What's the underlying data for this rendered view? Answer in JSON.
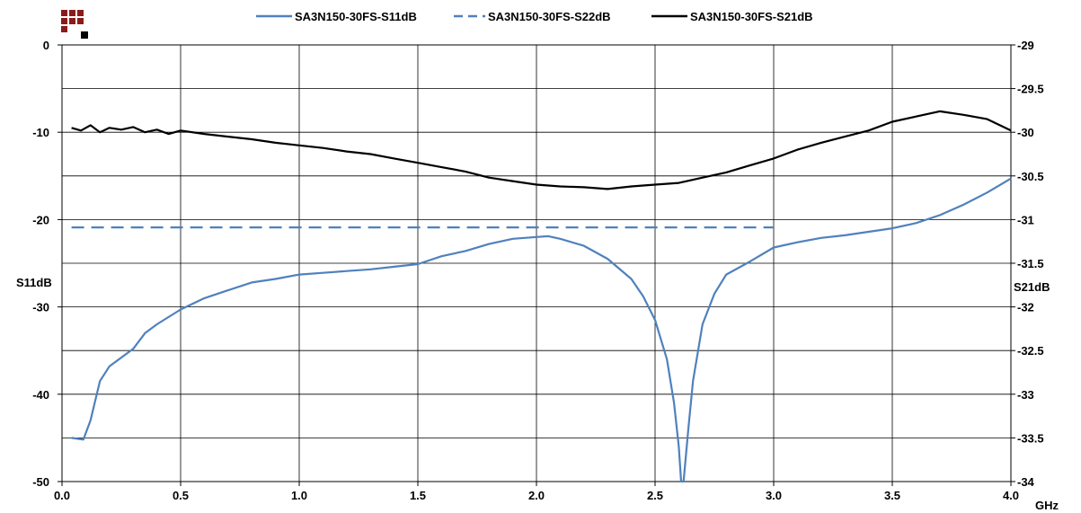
{
  "chart_data": {
    "type": "line",
    "xlabel": "GHz",
    "ylabel_left": "S11dB",
    "ylabel_right": "S21dB",
    "xlim": [
      0,
      4
    ],
    "ylim_left": [
      -50,
      0
    ],
    "ylim_right": [
      -34,
      -29
    ],
    "x_ticks": [
      "0.0",
      "0.5",
      "1.0",
      "1.5",
      "2.0",
      "2.5",
      "3.0",
      "3.5",
      "4.0"
    ],
    "y_left_ticks": [
      "0",
      "-10",
      "-20",
      "-30",
      "-40",
      "-50"
    ],
    "y_right_ticks": [
      "-29",
      "-29.5",
      "-30",
      "-30.5",
      "-31",
      "-31.5",
      "-32",
      "-32.5",
      "-33",
      "-33.5",
      "-34"
    ],
    "grid": true,
    "legend_position": "top",
    "series": [
      {
        "name": "SA3N150-30FS-S11dB",
        "axis": "left",
        "style": "solid",
        "color": "#4f81bd",
        "x": [
          0.04,
          0.09,
          0.12,
          0.16,
          0.2,
          0.25,
          0.3,
          0.35,
          0.4,
          0.5,
          0.6,
          0.7,
          0.8,
          0.9,
          1.0,
          1.1,
          1.2,
          1.3,
          1.4,
          1.5,
          1.6,
          1.7,
          1.8,
          1.9,
          2.0,
          2.05,
          2.1,
          2.2,
          2.3,
          2.4,
          2.45,
          2.5,
          2.55,
          2.58,
          2.6,
          2.61,
          2.62,
          2.64,
          2.66,
          2.7,
          2.75,
          2.8,
          2.9,
          3.0,
          3.1,
          3.2,
          3.3,
          3.4,
          3.5,
          3.6,
          3.7,
          3.8,
          3.9,
          4.0
        ],
        "y": [
          -45.0,
          -45.2,
          -43.0,
          -38.5,
          -36.8,
          -35.8,
          -34.8,
          -33.0,
          -32.0,
          -30.3,
          -29.0,
          -28.1,
          -27.2,
          -26.8,
          -26.3,
          -26.1,
          -25.9,
          -25.7,
          -25.4,
          -25.1,
          -24.2,
          -23.6,
          -22.8,
          -22.2,
          -22.0,
          -21.9,
          -22.2,
          -23.0,
          -24.5,
          -26.8,
          -28.8,
          -31.5,
          -36.0,
          -41.0,
          -46.0,
          -50.0,
          -50.0,
          -44.0,
          -38.5,
          -32.0,
          -28.5,
          -26.3,
          -24.8,
          -23.2,
          -22.6,
          -22.1,
          -21.8,
          -21.4,
          -21.0,
          -20.4,
          -19.5,
          -18.3,
          -16.9,
          -15.3
        ]
      },
      {
        "name": "SA3N150-30FS-S22dB",
        "axis": "left",
        "style": "dashed",
        "color": "#4f81bd",
        "x": [
          0.04,
          3.0
        ],
        "y": [
          -20.9,
          -20.9
        ]
      },
      {
        "name": "SA3N150-30FS-S21dB",
        "axis": "right",
        "style": "solid",
        "color": "#000000",
        "x": [
          0.04,
          0.08,
          0.12,
          0.16,
          0.2,
          0.25,
          0.3,
          0.35,
          0.4,
          0.45,
          0.5,
          0.6,
          0.7,
          0.8,
          0.9,
          1.0,
          1.1,
          1.2,
          1.3,
          1.4,
          1.5,
          1.6,
          1.7,
          1.8,
          1.9,
          2.0,
          2.1,
          2.2,
          2.3,
          2.4,
          2.5,
          2.6,
          2.7,
          2.8,
          2.9,
          3.0,
          3.1,
          3.2,
          3.3,
          3.4,
          3.5,
          3.6,
          3.7,
          3.8,
          3.9,
          4.0
        ],
        "y": [
          -29.95,
          -29.98,
          -29.92,
          -30.0,
          -29.95,
          -29.97,
          -29.94,
          -30.0,
          -29.97,
          -30.02,
          -29.98,
          -30.02,
          -30.05,
          -30.08,
          -30.12,
          -30.15,
          -30.18,
          -30.22,
          -30.25,
          -30.3,
          -30.35,
          -30.4,
          -30.45,
          -30.52,
          -30.56,
          -30.6,
          -30.62,
          -30.63,
          -30.65,
          -30.62,
          -30.6,
          -30.58,
          -30.52,
          -30.46,
          -30.38,
          -30.3,
          -30.2,
          -30.12,
          -30.05,
          -29.98,
          -29.88,
          -29.82,
          -29.76,
          -29.8,
          -29.85,
          -29.98
        ]
      }
    ]
  }
}
